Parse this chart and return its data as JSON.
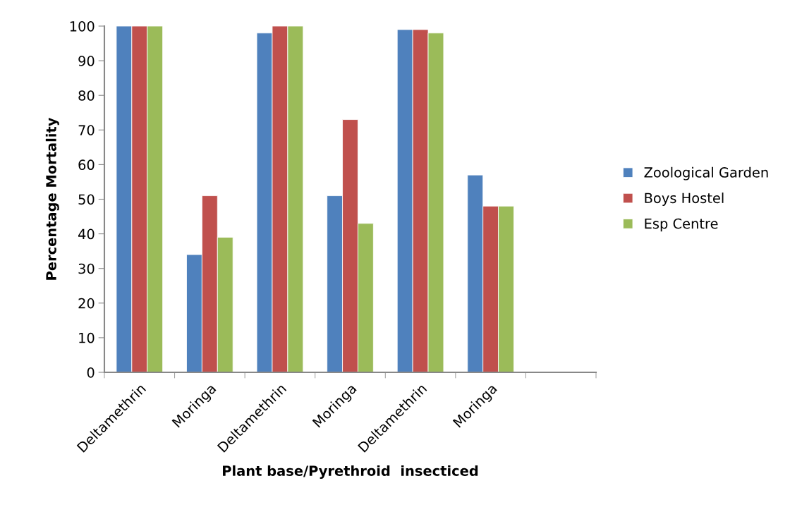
{
  "chart_data": {
    "type": "bar",
    "xlabel": "Plant base/Pyrethroid  insecticed",
    "ylabel": "Percentage Mortality",
    "categories": [
      "Deltamethrin",
      "Moringa",
      "Deltamethrin",
      "Moringa",
      "Deltamethrin",
      "Moringa",
      null
    ],
    "series": [
      {
        "name": "Zoological Garden",
        "color": "#4f81bd",
        "values": [
          100,
          34,
          98,
          51,
          99,
          57,
          null
        ]
      },
      {
        "name": "Boys Hostel",
        "color": "#c0504d",
        "values": [
          100,
          51,
          100,
          73,
          99,
          48,
          null
        ]
      },
      {
        "name": "Esp Centre",
        "color": "#9bbb59",
        "values": [
          100,
          39,
          100,
          43,
          98,
          48,
          null
        ]
      }
    ],
    "ylim": [
      0,
      100
    ],
    "yticks": [
      0,
      10,
      20,
      30,
      40,
      50,
      60,
      70,
      80,
      90,
      100
    ],
    "grid": false,
    "legend": "right"
  }
}
